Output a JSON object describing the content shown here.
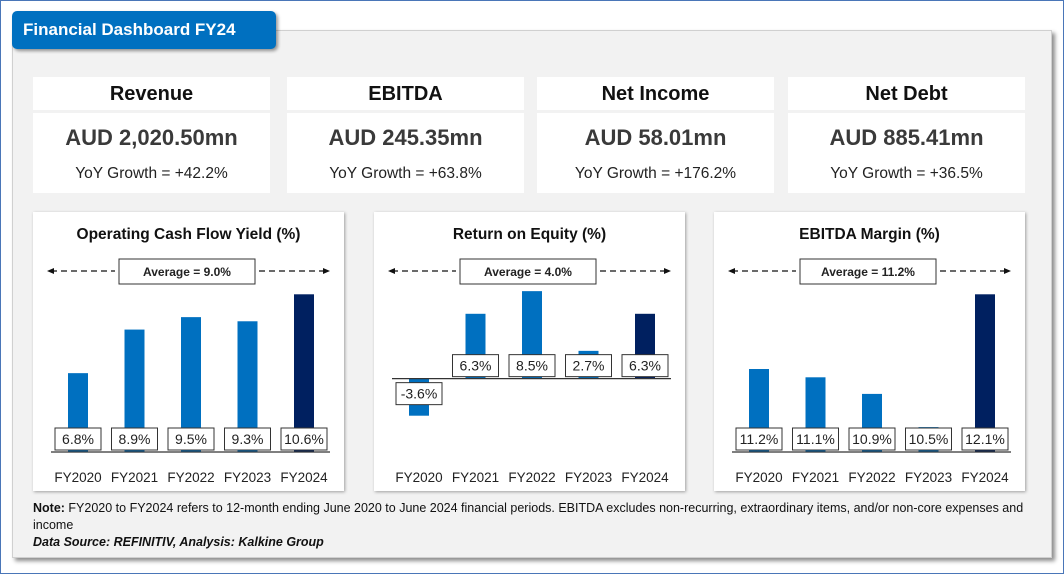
{
  "header": {
    "title": "Financial Dashboard FY24"
  },
  "colors": {
    "accent": "#0070c0",
    "highlight": "#002060",
    "panel_bg": "#f2f2f2",
    "frame": "#4a76b8"
  },
  "kpis": [
    {
      "label": "Revenue",
      "value": "AUD 2,020.50mn",
      "growth": "YoY Growth = +42.2%"
    },
    {
      "label": "EBITDA",
      "value": "AUD 245.35mn",
      "growth": "YoY Growth = +63.8%"
    },
    {
      "label": "Net Income",
      "value": "AUD 58.01mn",
      "growth": "YoY Growth = +176.2%"
    },
    {
      "label": "Net Debt",
      "value": "AUD 885.41mn",
      "growth": "YoY Growth = +36.5%"
    }
  ],
  "chart_data": [
    {
      "type": "bar",
      "title": "Operating Cash Flow Yield (%)",
      "categories": [
        "FY2020",
        "FY2021",
        "FY2022",
        "FY2023",
        "FY2024"
      ],
      "values": [
        6.8,
        8.9,
        9.5,
        9.3,
        10.6
      ],
      "data_labels": [
        "6.8%",
        "8.9%",
        "9.5%",
        "9.3%",
        "10.6%"
      ],
      "average_label": "Average = 9.0%",
      "highlight_index": 4,
      "xlabel": "",
      "ylabel": "",
      "ylim": [
        3.0,
        11.0
      ],
      "grid": false,
      "legend": "none"
    },
    {
      "type": "bar",
      "title": "Return on Equity (%)",
      "categories": [
        "FY2020",
        "FY2021",
        "FY2022",
        "FY2023",
        "FY2024"
      ],
      "values": [
        -3.6,
        6.3,
        8.5,
        2.7,
        6.3
      ],
      "data_labels": [
        "-3.6%",
        "6.3%",
        "8.5%",
        "2.7%",
        "6.3%"
      ],
      "average_label": "Average = 4.0%",
      "highlight_index": 4,
      "xlabel": "",
      "ylabel": "",
      "ylim": [
        -8.0,
        9.0
      ],
      "grid": false,
      "legend": "none"
    },
    {
      "type": "bar",
      "title": "EBITDA Margin (%)",
      "categories": [
        "FY2020",
        "FY2021",
        "FY2022",
        "FY2023",
        "FY2024"
      ],
      "values": [
        11.2,
        11.1,
        10.9,
        10.5,
        12.1
      ],
      "data_labels": [
        "11.2%",
        "11.1%",
        "10.9%",
        "10.5%",
        "12.1%"
      ],
      "average_label": "Average = 11.2%",
      "highlight_index": 4,
      "xlabel": "",
      "ylabel": "",
      "ylim": [
        10.2,
        12.2
      ],
      "grid": false,
      "legend": "none"
    }
  ],
  "footnote": {
    "note_label": "Note:",
    "note_text": " FY2020 to FY2024 refers to 12-month ending June 2020 to June 2024 financial periods. EBITDA excludes non-recurring, extraordinary items, and/or non-core expenses and income",
    "source": "Data Source: REFINITIV, Analysis: Kalkine Group"
  }
}
